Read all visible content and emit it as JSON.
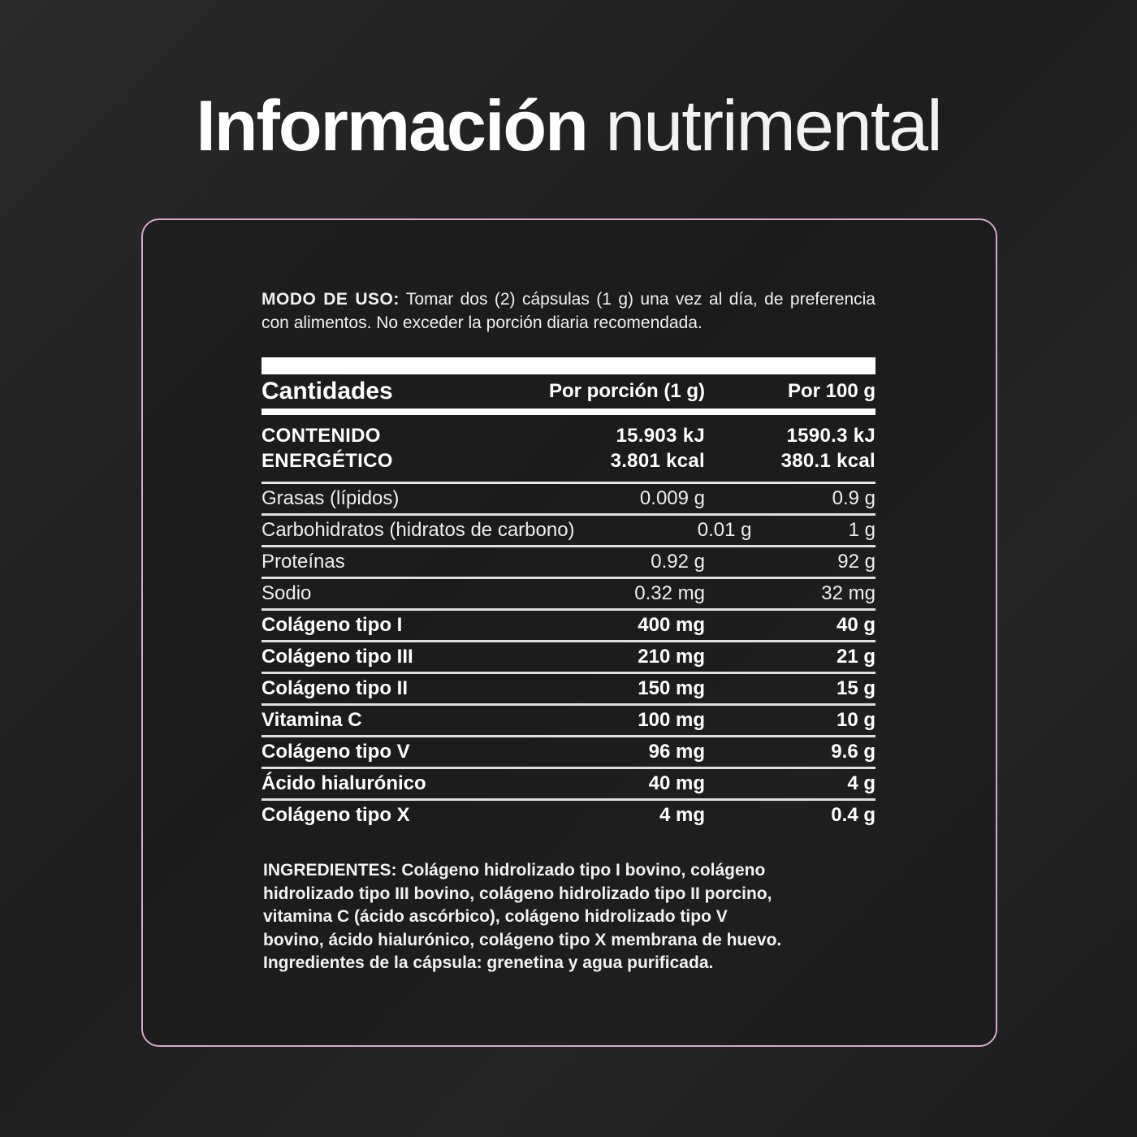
{
  "title": {
    "bold": "Información",
    "light": "nutrimental"
  },
  "usage": {
    "label": "MODO DE USO:",
    "text": " Tomar dos (2) cápsulas (1 g) una vez al día, de preferencia con alimentos. No exceder la porción diaria recomendada."
  },
  "table": {
    "headers": [
      "Cantidades",
      "Por porción (1 g)",
      "Por 100 g"
    ],
    "energy": {
      "label_1": "CONTENIDO",
      "label_2": "ENERGÉTICO",
      "portion_kj": "15.903 kJ",
      "portion_kcal": "3.801 kcal",
      "per100_kj": "1590.3 kJ",
      "per100_kcal": "380.1 kcal"
    },
    "rows": [
      {
        "name": "Grasas (lípidos)",
        "portion": "0.009 g",
        "per100": "0.9 g",
        "bold": false
      },
      {
        "name": "Carbohidratos (hidratos de carbono)",
        "portion": "0.01 g",
        "per100": "1 g",
        "bold": false
      },
      {
        "name": "Proteínas",
        "portion": "0.92 g",
        "per100": "92 g",
        "bold": false
      },
      {
        "name": "Sodio",
        "portion": "0.32 mg",
        "per100": "32 mg",
        "bold": false
      },
      {
        "name": "Colágeno tipo I",
        "portion": "400 mg",
        "per100": "40 g",
        "bold": true
      },
      {
        "name": "Colágeno tipo III",
        "portion": "210 mg",
        "per100": "21 g",
        "bold": true
      },
      {
        "name": "Colágeno tipo II",
        "portion": "150 mg",
        "per100": "15 g",
        "bold": true
      },
      {
        "name": "Vitamina C",
        "portion": "100 mg",
        "per100": "10 g",
        "bold": true
      },
      {
        "name": "Colágeno tipo V",
        "portion": "96 mg",
        "per100": "9.6 g",
        "bold": true
      },
      {
        "name": "Ácido hialurónico",
        "portion": "40 mg",
        "per100": "4 g",
        "bold": true
      },
      {
        "name": "Colágeno tipo X",
        "portion": "4 mg",
        "per100": "0.4 g",
        "bold": true
      }
    ]
  },
  "ingredients": {
    "lines": [
      "INGREDIENTES: Colágeno hidrolizado tipo I bovino, colágeno",
      "hidrolizado tipo III bovino, colágeno hidrolizado tipo II porcino,",
      "vitamina C (ácido ascórbico), colágeno hidrolizado tipo V",
      "bovino, ácido hialurónico, colágeno tipo X membrana de huevo.",
      "Ingredientes de la cápsula: grenetina y agua purificada."
    ]
  },
  "colors": {
    "border": "#d9a6cf",
    "background": "#222222",
    "text": "#ffffff"
  }
}
